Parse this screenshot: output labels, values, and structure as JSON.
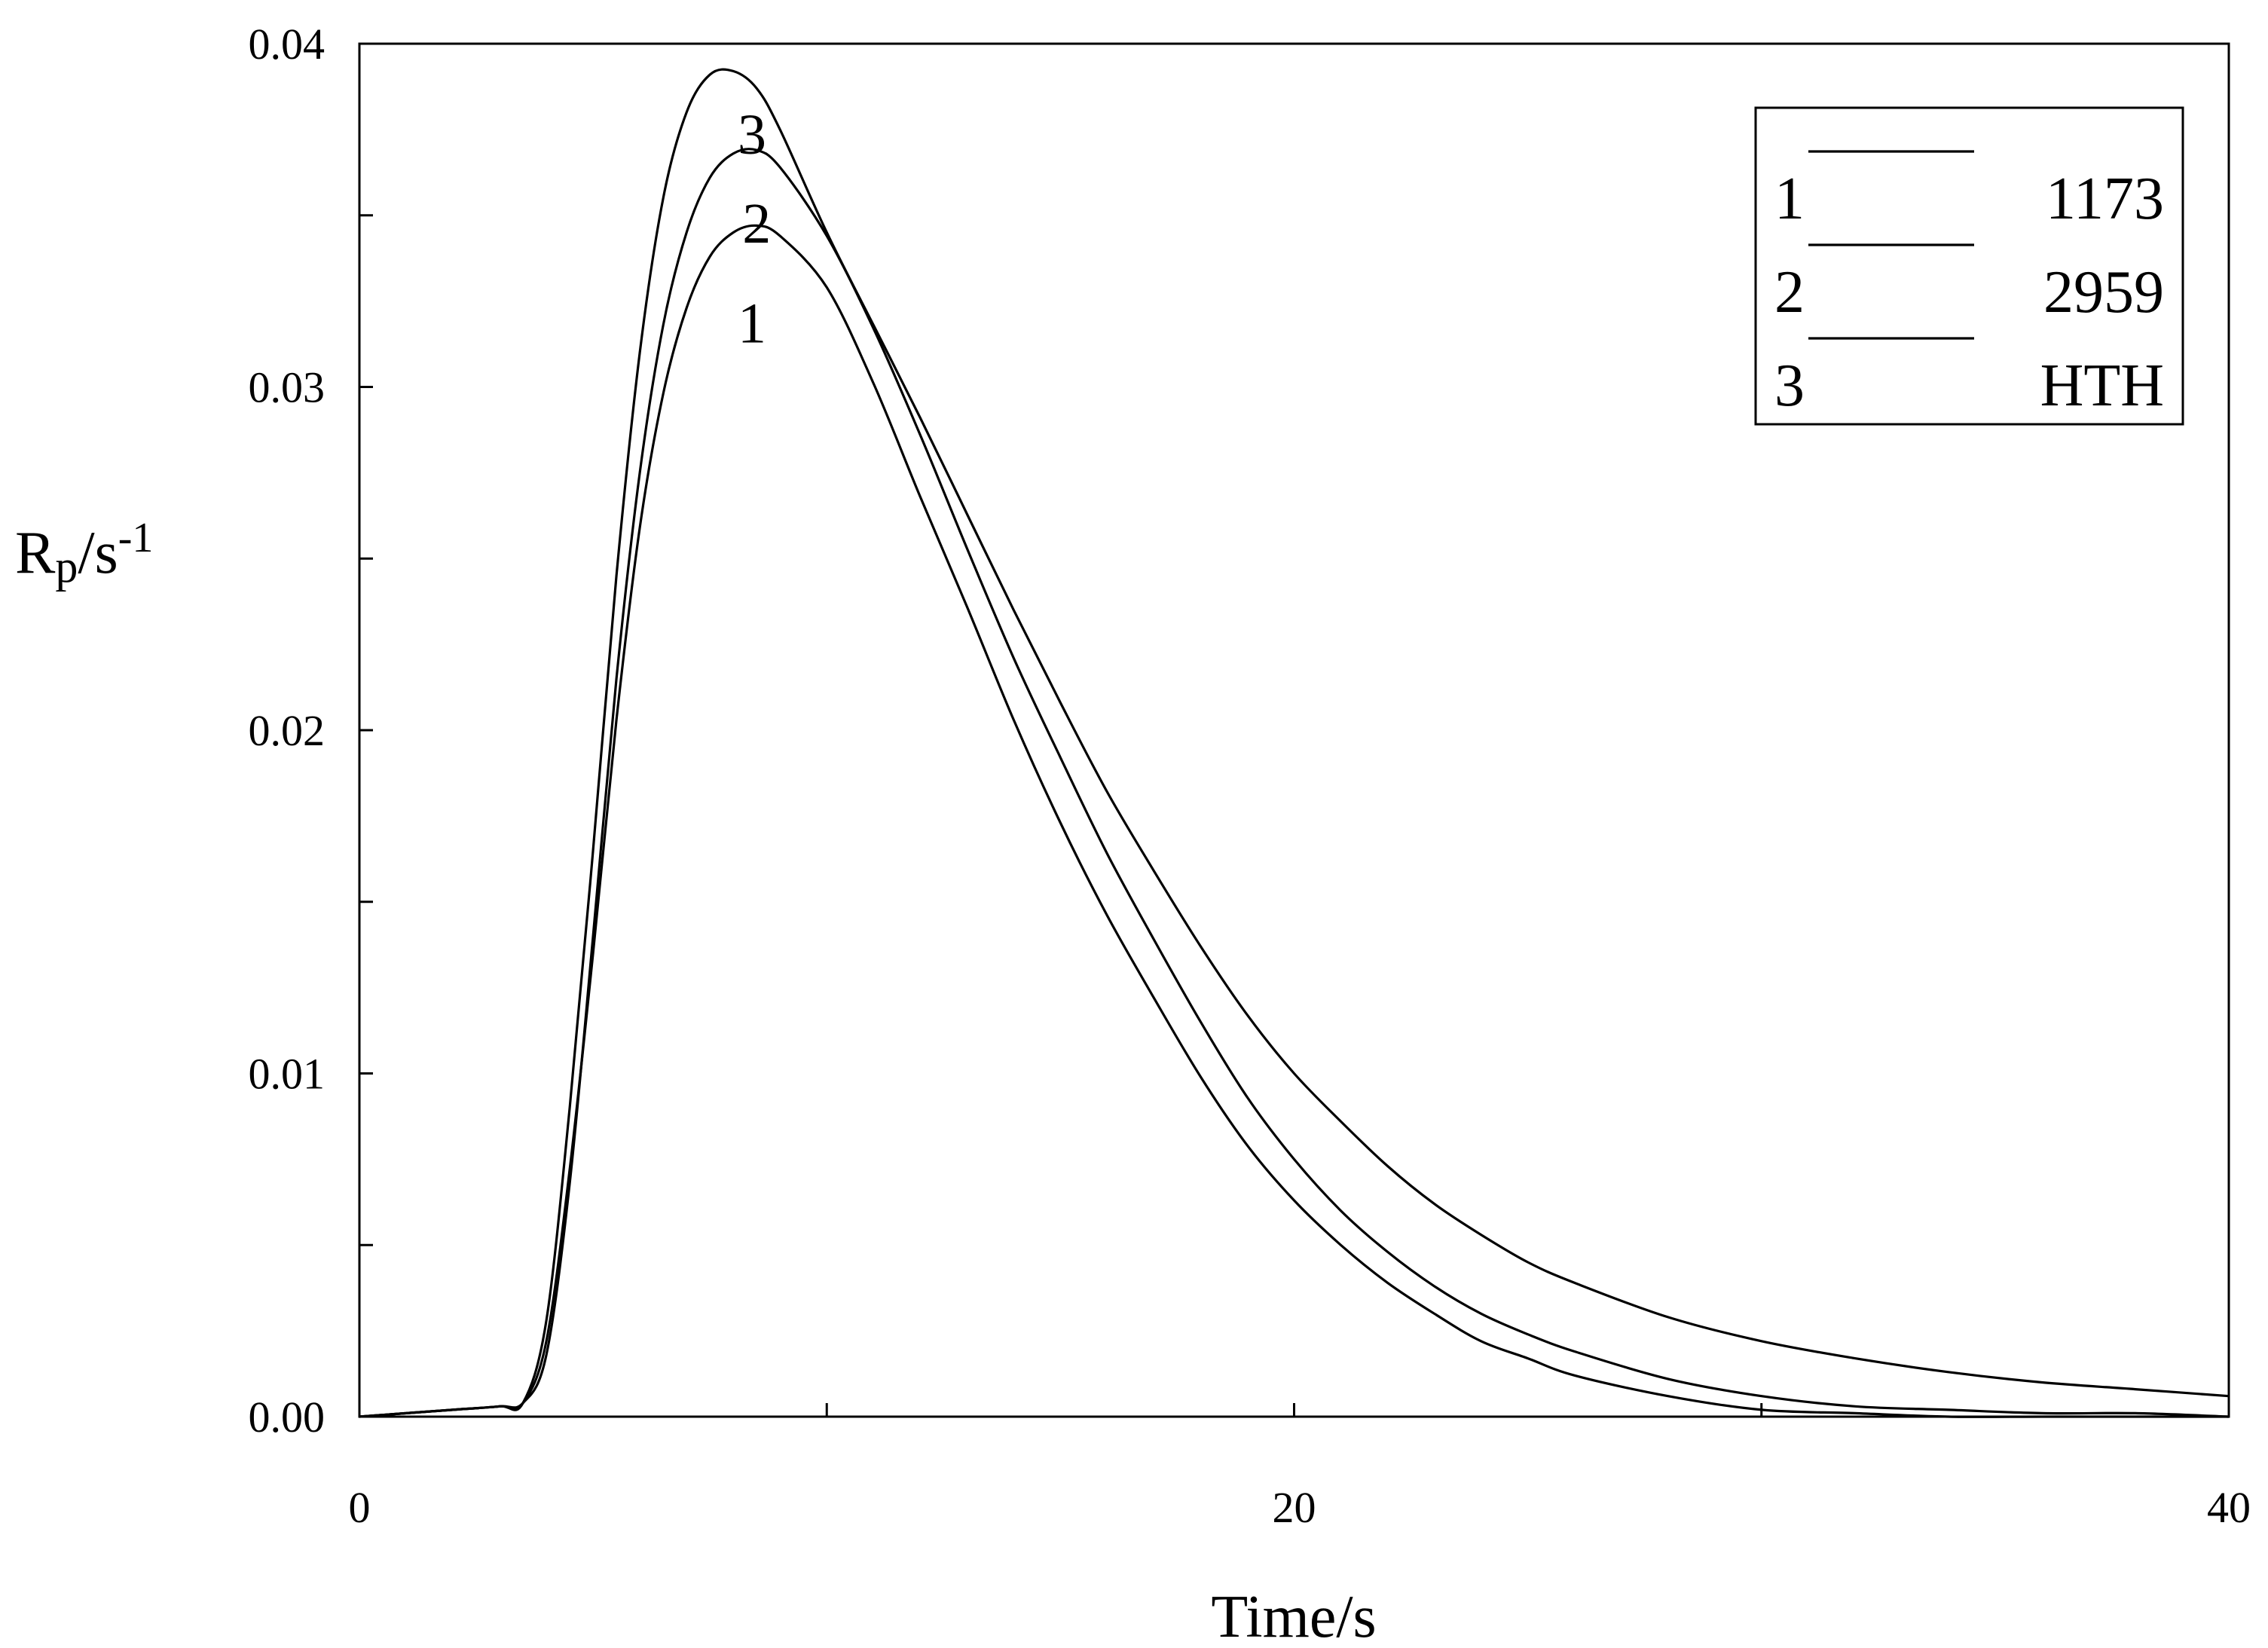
{
  "chart_data": {
    "type": "line",
    "title": "",
    "xlabel": "Time/s",
    "ylabel": {
      "base": "R",
      "sub": "p",
      "mid": "/s",
      "sup": "-1"
    },
    "xlim": [
      0,
      40
    ],
    "ylim": [
      0,
      0.04
    ],
    "x_ticks": [
      0,
      20,
      40
    ],
    "x_tick_labels": [
      "0",
      "20",
      "40"
    ],
    "y_ticks": [
      0,
      0.01,
      0.02,
      0.03,
      0.04
    ],
    "y_tick_labels": [
      "0.00",
      "0.01",
      "0.02",
      "0.03",
      "0.04"
    ],
    "grid": false,
    "legend_position": "top-right",
    "legend": [
      {
        "num": "1",
        "label": "1173"
      },
      {
        "num": "2",
        "label": "2959"
      },
      {
        "num": "3",
        "label": "HTH"
      }
    ],
    "series": [
      {
        "name": "1173",
        "label": "1",
        "x": [
          0,
          1,
          2,
          3,
          3.5,
          4,
          4.5,
          5,
          5.5,
          6,
          6.5,
          7,
          7.5,
          8,
          8.5,
          9,
          10,
          11,
          12,
          13,
          14,
          15,
          16,
          17,
          18,
          19,
          20,
          21,
          22,
          23,
          24,
          25,
          26,
          28,
          30,
          32,
          34,
          36,
          38,
          40
        ],
        "y": [
          0,
          0.0001,
          0.0002,
          0.0003,
          0.0004,
          0.0022,
          0.0072,
          0.0135,
          0.0203,
          0.0259,
          0.0298,
          0.0323,
          0.0338,
          0.0345,
          0.0347,
          0.0344,
          0.0329,
          0.0301,
          0.0268,
          0.0236,
          0.0203,
          0.0173,
          0.0146,
          0.0122,
          0.0099,
          0.0079,
          0.0063,
          0.005,
          0.0039,
          0.003,
          0.0022,
          0.0017,
          0.0012,
          0.0006,
          0.0002,
          0.0001,
          0.0,
          0.0,
          0.0,
          0.0
        ]
      },
      {
        "name": "2959",
        "label": "2",
        "x": [
          0,
          1,
          2,
          3,
          3.5,
          4,
          4.5,
          5,
          5.5,
          6,
          6.5,
          7,
          7.5,
          8,
          8.5,
          9,
          10,
          11,
          12,
          13,
          14,
          15,
          16,
          17,
          18,
          19,
          20,
          21,
          22,
          23,
          24,
          25,
          26,
          28,
          30,
          32,
          34,
          36,
          38,
          40
        ],
        "y": [
          0,
          0.0001,
          0.0002,
          0.0003,
          0.0004,
          0.0018,
          0.0068,
          0.014,
          0.0215,
          0.0275,
          0.0318,
          0.0345,
          0.0361,
          0.0368,
          0.0369,
          0.0364,
          0.0344,
          0.0317,
          0.0286,
          0.0253,
          0.0221,
          0.0192,
          0.0164,
          0.0139,
          0.0115,
          0.0093,
          0.0075,
          0.006,
          0.0048,
          0.0038,
          0.003,
          0.0024,
          0.0019,
          0.0011,
          0.0006,
          0.0003,
          0.0002,
          0.0001,
          0.0001,
          0.0
        ]
      },
      {
        "name": "HTH",
        "label": "3",
        "x": [
          0,
          1,
          2,
          3,
          3.5,
          4,
          4.5,
          5,
          5.5,
          6,
          6.5,
          7,
          7.5,
          8,
          8.5,
          9,
          10,
          11,
          12,
          13,
          14,
          15,
          16,
          17,
          18,
          19,
          20,
          21,
          22,
          23,
          24,
          25,
          26,
          28,
          30,
          32,
          34,
          36,
          38,
          40
        ],
        "y": [
          0,
          0.0001,
          0.0002,
          0.0003,
          0.0004,
          0.0028,
          0.009,
          0.0165,
          0.0245,
          0.031,
          0.0355,
          0.038,
          0.0391,
          0.0392,
          0.0387,
          0.0375,
          0.0345,
          0.0318,
          0.0291,
          0.0263,
          0.0235,
          0.0208,
          0.0182,
          0.0159,
          0.0137,
          0.0117,
          0.01,
          0.0086,
          0.0073,
          0.0062,
          0.0053,
          0.0045,
          0.0039,
          0.0029,
          0.0022,
          0.0017,
          0.0013,
          0.001,
          0.0008,
          0.0006
        ]
      }
    ],
    "curve_labels": [
      {
        "text": "3",
        "x": 8.4,
        "y": 0.0368
      },
      {
        "text": "2",
        "x": 8.5,
        "y": 0.0342
      },
      {
        "text": "1",
        "x": 8.4,
        "y": 0.0313
      }
    ]
  }
}
